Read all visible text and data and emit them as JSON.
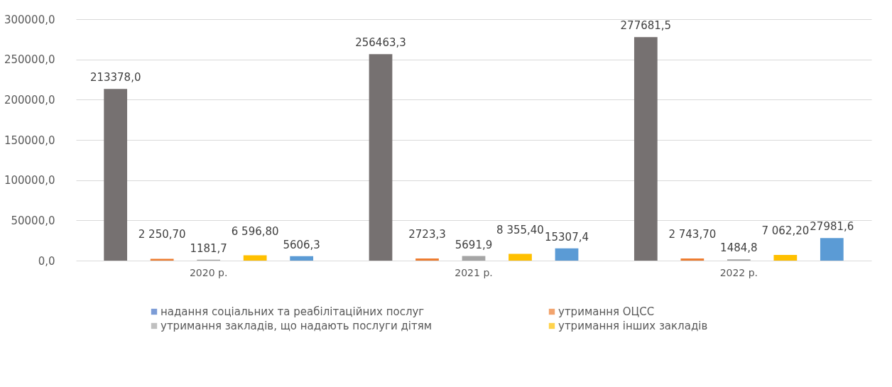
{
  "chart_data": {
    "type": "bar",
    "categories": [
      "2020 р.",
      "2021 р.",
      "2022 р."
    ],
    "series": [
      {
        "color": "#767171",
        "values": [
          213378.0,
          256463.3,
          277681.5
        ],
        "value_labels": [
          "213378,0",
          "256463,3",
          "277681,5"
        ]
      },
      {
        "name": "надання соціальних та реабілітаційних  послуг",
        "color": "#4472c4",
        "values": [
          null,
          null,
          null
        ]
      },
      {
        "name": "утримання ОЦСС",
        "color": "#ed7d31",
        "values": [
          2250.7,
          2723.3,
          2743.7
        ],
        "value_labels": [
          "2 250,70",
          "2723,3",
          "2 743,70"
        ]
      },
      {
        "name": "утримання закладів, що надають послуги дітям",
        "color": "#a5a5a5",
        "values": [
          1181.7,
          5691.9,
          1484.8
        ],
        "value_labels": [
          "1181,7",
          "5691,9",
          "1484,8"
        ]
      },
      {
        "name": "утримання інших закладів",
        "color": "#ffc000",
        "values": [
          6596.8,
          8355.4,
          7062.2
        ],
        "value_labels": [
          "6 596,80",
          "8 355,40",
          "7 062,20"
        ]
      },
      {
        "color": "#5b9bd5",
        "values": [
          5606.3,
          15307.4,
          27981.6
        ],
        "value_labels": [
          "5606,3",
          "15307,4",
          "27981,6"
        ]
      }
    ],
    "ylim": [
      0,
      300000
    ],
    "yticks": [
      {
        "value": 0,
        "label": "0,0"
      },
      {
        "value": 50000,
        "label": "50000,0"
      },
      {
        "value": 100000,
        "label": "100000,0"
      },
      {
        "value": 150000,
        "label": "150000,0"
      },
      {
        "value": 200000,
        "label": "200000,0"
      },
      {
        "value": 250000,
        "label": "250000,0"
      },
      {
        "value": 300000,
        "label": "300000,0"
      }
    ],
    "grid": "y",
    "legend": "bottom"
  }
}
